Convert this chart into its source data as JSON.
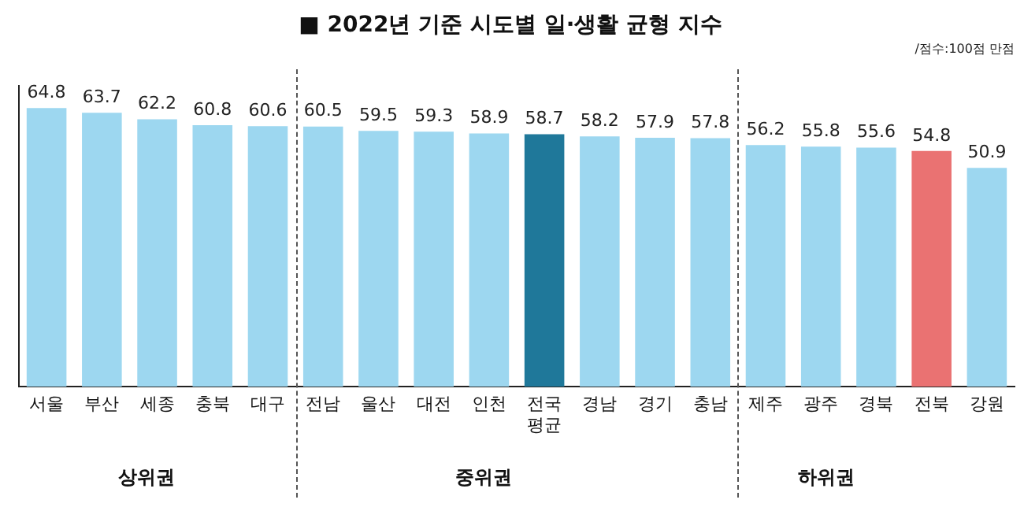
{
  "chart_data": {
    "type": "bar",
    "title": "■ 2022년 기준 시도별 일·생활 균형 지수",
    "subtitle": "/점수:100점 만점",
    "categories": [
      "서울",
      "부산",
      "세종",
      "충북",
      "대구",
      "전남",
      "울산",
      "대전",
      "인천",
      "전국\n평균",
      "경남",
      "경기",
      "충남",
      "제주",
      "광주",
      "경북",
      "전북",
      "강원"
    ],
    "values": [
      64.8,
      63.7,
      62.2,
      60.8,
      60.6,
      60.5,
      59.5,
      59.3,
      58.9,
      58.7,
      58.2,
      57.9,
      57.8,
      56.2,
      55.8,
      55.6,
      54.8,
      50.9
    ],
    "colors": [
      "#9dd7f0",
      "#9dd7f0",
      "#9dd7f0",
      "#9dd7f0",
      "#9dd7f0",
      "#9dd7f0",
      "#9dd7f0",
      "#9dd7f0",
      "#9dd7f0",
      "#1f789a",
      "#9dd7f0",
      "#9dd7f0",
      "#9dd7f0",
      "#9dd7f0",
      "#9dd7f0",
      "#9dd7f0",
      "#ea7272",
      "#9dd7f0"
    ],
    "data_labels": true,
    "annotations": [
      "상위권",
      "중위권",
      "하위권"
    ],
    "grid": false,
    "legend": false
  }
}
